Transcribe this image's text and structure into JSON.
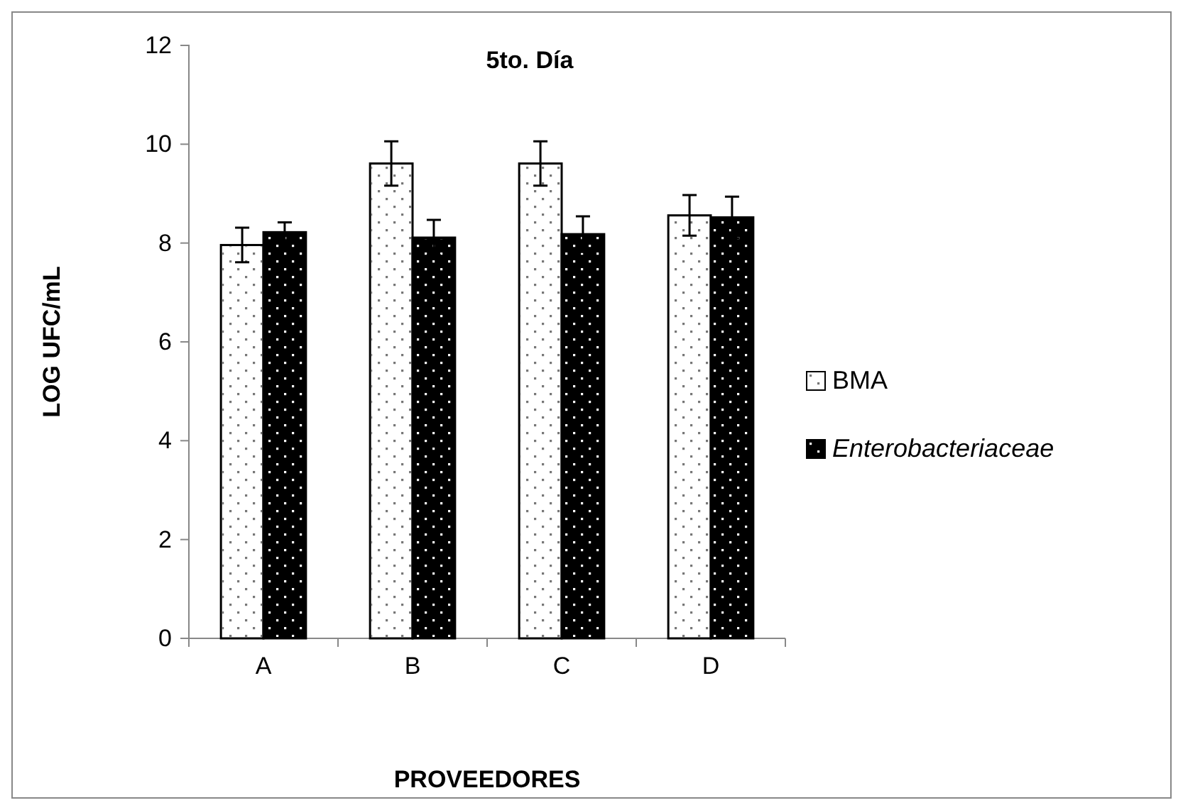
{
  "chart_data": {
    "type": "bar",
    "title": "5to. Día",
    "xlabel": "PROVEEDORES",
    "ylabel": "LOG UFC/mL",
    "categories": [
      "A",
      "B",
      "C",
      "D"
    ],
    "series": [
      {
        "name": "BMA",
        "color": "#ffffff",
        "values": [
          7.96,
          9.61,
          9.61,
          8.56
        ],
        "errors": [
          0.35,
          0.45,
          0.45,
          0.41
        ]
      },
      {
        "name": "Enterobacteriaceae",
        "color": "#000000",
        "values": [
          8.22,
          8.11,
          8.18,
          8.52
        ],
        "errors": [
          0.2,
          0.36,
          0.36,
          0.42
        ]
      }
    ],
    "ylim": [
      0,
      12
    ],
    "yticks": [
      0,
      2,
      4,
      6,
      8,
      10,
      12
    ],
    "grid": false,
    "legend": "right"
  }
}
